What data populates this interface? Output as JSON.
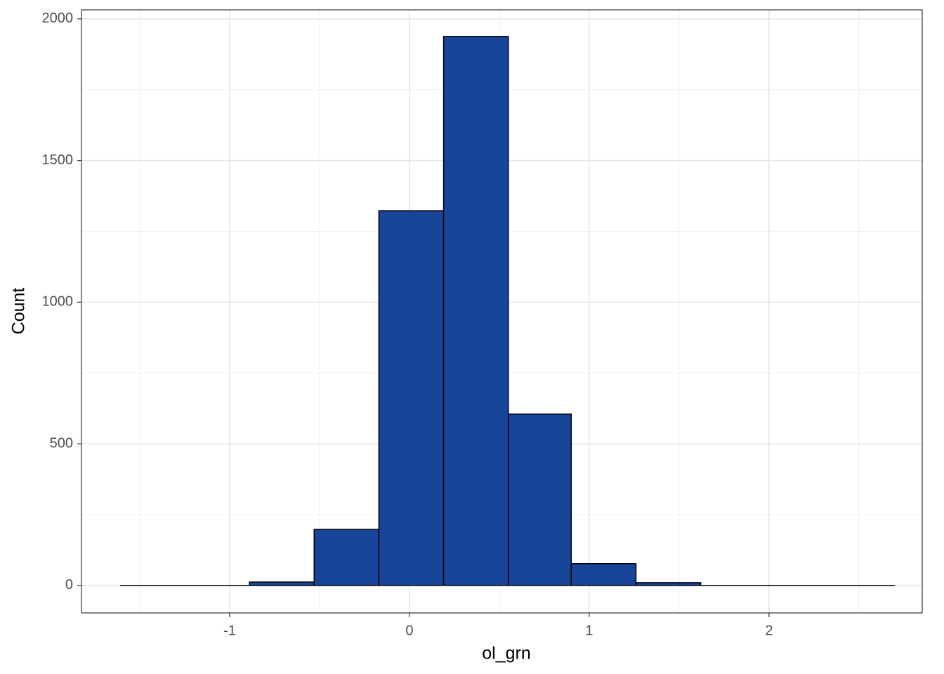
{
  "chart_data": {
    "type": "histogram",
    "xlabel": "ol_grn",
    "ylabel": "Count",
    "bins": [
      -1.61,
      -1.25,
      -0.89,
      -0.53,
      -0.17,
      0.19,
      0.55,
      0.9,
      1.26,
      1.62,
      1.98,
      2.34,
      2.7
    ],
    "counts": [
      0,
      0,
      12,
      198,
      1323,
      1938,
      605,
      77,
      10,
      0,
      0,
      0
    ],
    "color": "#18449a",
    "edgecolor": "#000000",
    "xlim": [
      -1.824,
      2.852
    ],
    "ylim": [
      -97,
      2032
    ],
    "xticks": [
      -1,
      0,
      1,
      2
    ],
    "yticks": [
      0,
      500,
      1000,
      1500,
      2000
    ],
    "xminor": [
      -1.5,
      -0.5,
      0.5,
      1.5,
      2.5
    ],
    "yminor": [
      250,
      750,
      1250,
      1750
    ],
    "grid": true
  }
}
